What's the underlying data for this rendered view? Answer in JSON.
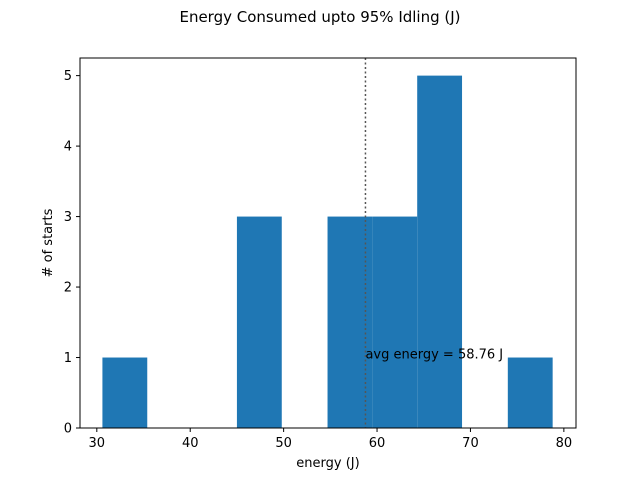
{
  "chart_data": {
    "type": "bar",
    "title": "Energy Consumed upto 95% Idling (J)",
    "xlabel": "energy (J)",
    "ylabel": "# of starts",
    "xlim": [
      28.2,
      81.3
    ],
    "ylim": [
      0,
      5.25
    ],
    "xticks": [
      30,
      40,
      50,
      60,
      70,
      80
    ],
    "yticks": [
      0,
      1,
      2,
      3,
      4,
      5
    ],
    "grid": false,
    "bar_color": "#1f77b4",
    "bins": [
      {
        "x0": 30.6,
        "x1": 35.4,
        "count": 1
      },
      {
        "x0": 35.4,
        "x1": 40.2,
        "count": 0
      },
      {
        "x0": 40.2,
        "x1": 45.0,
        "count": 0
      },
      {
        "x0": 45.0,
        "x1": 49.8,
        "count": 3
      },
      {
        "x0": 49.8,
        "x1": 54.7,
        "count": 0
      },
      {
        "x0": 54.7,
        "x1": 59.5,
        "count": 3
      },
      {
        "x0": 59.5,
        "x1": 64.3,
        "count": 3
      },
      {
        "x0": 64.3,
        "x1": 69.1,
        "count": 5
      },
      {
        "x0": 69.1,
        "x1": 74.0,
        "count": 0
      },
      {
        "x0": 74.0,
        "x1": 78.8,
        "count": 1
      }
    ],
    "average": {
      "value": 58.76,
      "line_color": "#555555",
      "line_style": "dotted",
      "annotation": "avg energy = 58.76 J",
      "annotation_y": 1.0
    }
  }
}
